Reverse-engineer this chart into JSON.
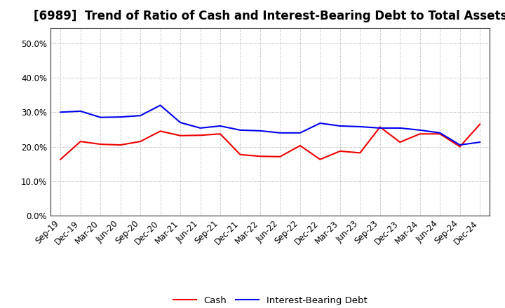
{
  "title": "[6989]  Trend of Ratio of Cash and Interest-Bearing Debt to Total Assets",
  "x_labels": [
    "Sep-19",
    "Dec-19",
    "Mar-20",
    "Jun-20",
    "Sep-20",
    "Dec-20",
    "Mar-21",
    "Jun-21",
    "Sep-21",
    "Dec-21",
    "Mar-22",
    "Jun-22",
    "Sep-22",
    "Dec-22",
    "Mar-23",
    "Jun-23",
    "Sep-23",
    "Dec-23",
    "Mar-24",
    "Jun-24",
    "Sep-24",
    "Dec-24"
  ],
  "cash": [
    0.163,
    0.215,
    0.207,
    0.205,
    0.215,
    0.245,
    0.232,
    0.233,
    0.237,
    0.177,
    0.172,
    0.171,
    0.203,
    0.163,
    0.187,
    0.182,
    0.257,
    0.213,
    0.237,
    0.237,
    0.2,
    0.265
  ],
  "ibd": [
    0.3,
    0.303,
    0.285,
    0.286,
    0.29,
    0.32,
    0.27,
    0.254,
    0.26,
    0.248,
    0.246,
    0.24,
    0.24,
    0.268,
    0.26,
    0.258,
    0.254,
    0.254,
    0.248,
    0.24,
    0.205,
    0.213
  ],
  "cash_color": "#ee0000",
  "ibd_color": "#0000ee",
  "ylim": [
    0.0,
    0.545
  ],
  "yticks": [
    0.0,
    0.1,
    0.2,
    0.3,
    0.4,
    0.5
  ],
  "background_color": "#ffffff",
  "plot_bg_color": "#ffffff",
  "grid_color": "#999999",
  "title_fontsize": 12,
  "tick_fontsize": 8.5,
  "legend_fontsize": 9.5
}
